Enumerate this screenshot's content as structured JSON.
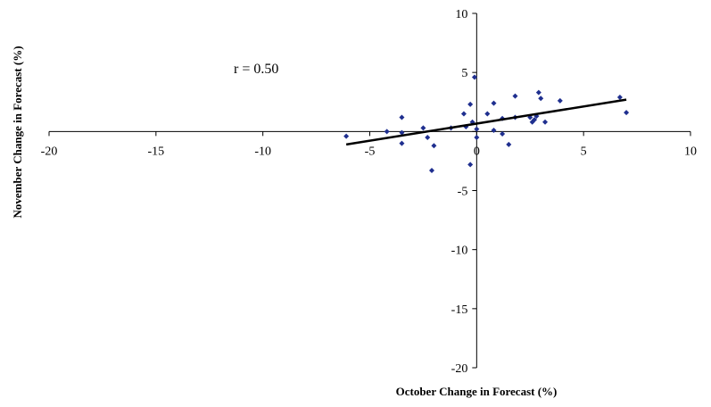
{
  "chart_data": {
    "type": "scatter",
    "title": "",
    "xlabel": "October Change in Forecast (%)",
    "ylabel": "November Change in Forecast (%)",
    "xlim": [
      -20,
      10
    ],
    "ylim": [
      -20,
      10
    ],
    "xticks": [
      -20,
      -15,
      -10,
      -5,
      0,
      5,
      10
    ],
    "yticks": [
      -20,
      -15,
      -10,
      -5,
      0,
      5,
      10
    ],
    "grid": false,
    "annotation": "r = 0.50",
    "point_color": "#1f2f8f",
    "series": [
      {
        "points": [
          [
            -6.1,
            -0.4
          ],
          [
            -4.2,
            0.0
          ],
          [
            -3.5,
            1.2
          ],
          [
            -3.5,
            -0.1
          ],
          [
            -3.5,
            -1.0
          ],
          [
            -2.5,
            0.3
          ],
          [
            -2.3,
            -0.5
          ],
          [
            -2.1,
            -3.3
          ],
          [
            -2.0,
            -1.2
          ],
          [
            -1.2,
            0.3
          ],
          [
            -0.6,
            1.5
          ],
          [
            -0.5,
            0.4
          ],
          [
            -0.3,
            2.3
          ],
          [
            -0.3,
            -2.8
          ],
          [
            -0.2,
            0.8
          ],
          [
            -0.1,
            4.6
          ],
          [
            0.0,
            0.2
          ],
          [
            0.0,
            -0.5
          ],
          [
            0.5,
            1.5
          ],
          [
            0.8,
            2.4
          ],
          [
            0.8,
            0.1
          ],
          [
            1.2,
            1.1
          ],
          [
            1.2,
            -0.2
          ],
          [
            1.5,
            -1.1
          ],
          [
            1.8,
            3.0
          ],
          [
            1.8,
            1.2
          ],
          [
            2.5,
            1.2
          ],
          [
            2.6,
            0.8
          ],
          [
            2.7,
            1.0
          ],
          [
            2.8,
            1.3
          ],
          [
            2.9,
            3.3
          ],
          [
            3.0,
            2.8
          ],
          [
            3.2,
            0.8
          ],
          [
            3.9,
            2.6
          ],
          [
            6.7,
            2.9
          ],
          [
            7.0,
            1.6
          ]
        ]
      }
    ],
    "trendline": {
      "x": [
        -6.1,
        7.0
      ],
      "y": [
        -1.1,
        2.7
      ]
    }
  }
}
